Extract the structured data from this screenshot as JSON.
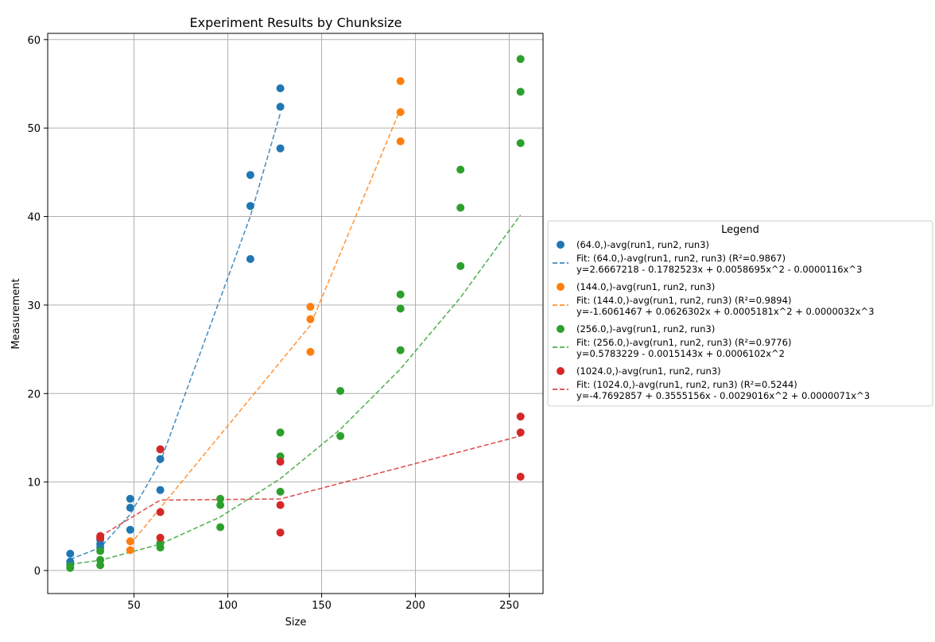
{
  "chart_data": {
    "type": "scatter",
    "title": "Experiment Results by Chunksize",
    "xlabel": "Size",
    "ylabel": "Measurement",
    "xlim": [
      4,
      268
    ],
    "ylim": [
      -2.6,
      60.7
    ],
    "xticks": [
      50,
      100,
      150,
      200,
      250
    ],
    "yticks": [
      0,
      10,
      20,
      30,
      40,
      50,
      60
    ],
    "grid": true,
    "legend": {
      "title": "Legend",
      "placement": "outside-right"
    },
    "series": [
      {
        "name": "(64.0,)-avg(run1, run2, run3)",
        "color": "#1f77b4",
        "points": [
          [
            16,
            0.7
          ],
          [
            16,
            1.0
          ],
          [
            16,
            1.9
          ],
          [
            32,
            2.6
          ],
          [
            32,
            3.0
          ],
          [
            32,
            3.5
          ],
          [
            48,
            4.6
          ],
          [
            48,
            7.1
          ],
          [
            48,
            8.1
          ],
          [
            64,
            9.1
          ],
          [
            64,
            12.6
          ],
          [
            64,
            13.7
          ],
          [
            112,
            35.2
          ],
          [
            112,
            41.2
          ],
          [
            112,
            44.7
          ],
          [
            128,
            47.7
          ],
          [
            128,
            52.4
          ],
          [
            128,
            54.5
          ]
        ],
        "fit": {
          "label": "Fit: (64.0,)-avg(run1, run2, run3) (R²=0.9867)",
          "equation": "y=2.6667218 - 0.1782523x + 0.0058695x^2 - 0.0000116x^3",
          "coefficients": [
            2.6667218,
            -0.1782523,
            0.0058695,
            -1.16e-05
          ],
          "x": [
            16,
            32,
            48,
            64,
            112,
            128
          ]
        }
      },
      {
        "name": "(144.0,)-avg(run1, run2, run3)",
        "color": "#ff7f0e",
        "points": [
          [
            48,
            2.3
          ],
          [
            48,
            3.3
          ],
          [
            144,
            24.7
          ],
          [
            144,
            28.4
          ],
          [
            144,
            29.8
          ],
          [
            192,
            48.5
          ],
          [
            192,
            51.8
          ],
          [
            192,
            55.3
          ]
        ],
        "fit": {
          "label": "Fit: (144.0,)-avg(run1, run2, run3) (R²=0.9894)",
          "equation": "y=-1.6061467 + 0.0626302x + 0.0005181x^2 + 0.0000032x^3",
          "coefficients": [
            -1.6061467,
            0.0626302,
            0.0005181,
            3.2e-06
          ],
          "x": [
            48,
            144,
            192
          ]
        }
      },
      {
        "name": "(256.0,)-avg(run1, run2, run3)",
        "color": "#2ca02c",
        "points": [
          [
            16,
            0.3
          ],
          [
            16,
            0.5
          ],
          [
            32,
            0.6
          ],
          [
            32,
            1.2
          ],
          [
            32,
            2.2
          ],
          [
            64,
            2.6
          ],
          [
            64,
            3.1
          ],
          [
            96,
            4.9
          ],
          [
            96,
            7.4
          ],
          [
            96,
            8.1
          ],
          [
            128,
            8.9
          ],
          [
            128,
            12.9
          ],
          [
            128,
            15.6
          ],
          [
            160,
            15.2
          ],
          [
            160,
            20.3
          ],
          [
            192,
            24.9
          ],
          [
            192,
            29.6
          ],
          [
            192,
            31.2
          ],
          [
            224,
            34.4
          ],
          [
            224,
            41.0
          ],
          [
            224,
            45.3
          ],
          [
            256,
            48.3
          ],
          [
            256,
            54.1
          ],
          [
            256,
            57.8
          ]
        ],
        "fit": {
          "label": "Fit: (256.0,)-avg(run1, run2, run3) (R²=0.9776)",
          "equation": "y=0.5783229 - 0.0015143x + 0.0006102x^2",
          "coefficients": [
            0.5783229,
            -0.0015143,
            0.0006102
          ],
          "x": [
            16,
            32,
            64,
            96,
            128,
            160,
            192,
            224,
            256
          ]
        }
      },
      {
        "name": "(1024.0,)-avg(run1, run2, run3)",
        "color": "#d62728",
        "points": [
          [
            32,
            3.7
          ],
          [
            32,
            3.9
          ],
          [
            64,
            3.7
          ],
          [
            64,
            6.6
          ],
          [
            64,
            13.7
          ],
          [
            128,
            4.3
          ],
          [
            128,
            7.4
          ],
          [
            128,
            12.3
          ],
          [
            256,
            10.6
          ],
          [
            256,
            15.6
          ],
          [
            256,
            17.4
          ]
        ],
        "fit": {
          "label": "Fit: (1024.0,)-avg(run1, run2, run3) (R²=0.5244)",
          "equation": "y=-4.7692857 + 0.3555156x - 0.0029016x^2 + 0.0000071x^3",
          "coefficients": [
            -4.7692857,
            0.3555156,
            -0.0029016,
            7.1e-06
          ],
          "x": [
            32,
            64,
            128,
            256
          ]
        }
      }
    ]
  }
}
